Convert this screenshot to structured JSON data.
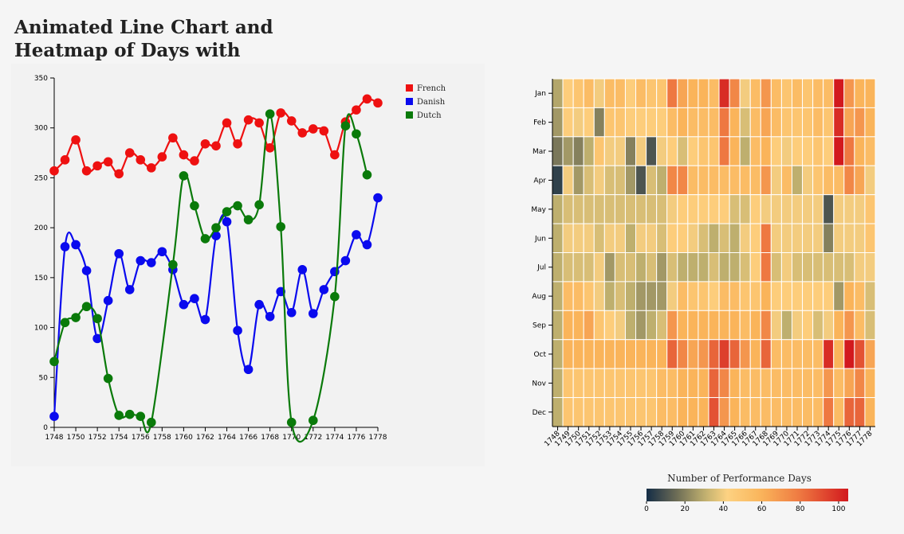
{
  "title": "Animated Line Chart and Heatmap of Days with Performances",
  "chart_data": [
    {
      "type": "line",
      "x": [
        1748,
        1749,
        1750,
        1751,
        1752,
        1753,
        1754,
        1755,
        1756,
        1757,
        1758,
        1759,
        1760,
        1761,
        1762,
        1763,
        1764,
        1765,
        1766,
        1767,
        1768,
        1769,
        1770,
        1771,
        1772,
        1773,
        1774,
        1775,
        1776,
        1777,
        1778
      ],
      "xticks": [
        "1748",
        "1750",
        "1752",
        "1754",
        "1756",
        "1758",
        "1760",
        "1762",
        "1764",
        "1766",
        "1768",
        "1770",
        "1772",
        "1774",
        "1776",
        "1778"
      ],
      "ylim": [
        0,
        350
      ],
      "yticks": [
        "0",
        "50",
        "100",
        "150",
        "200",
        "250",
        "300",
        "350"
      ],
      "legend_position": "top-right",
      "series": [
        {
          "name": "French",
          "color": "#ee1111",
          "values": [
            257,
            268,
            288,
            257,
            262,
            266,
            254,
            275,
            268,
            260,
            271,
            290,
            273,
            267,
            284,
            282,
            305,
            284,
            308,
            305,
            280,
            315,
            307,
            295,
            299,
            297,
            273,
            306,
            318,
            329,
            325
          ]
        },
        {
          "name": "Danish",
          "color": "#0a0aee",
          "values": [
            11,
            181,
            183,
            157,
            89,
            127,
            174,
            138,
            167,
            165,
            176,
            158,
            123,
            129,
            108,
            192,
            206,
            97,
            58,
            123,
            111,
            136,
            115,
            158,
            114,
            138,
            156,
            167,
            193,
            183,
            230
          ]
        },
        {
          "name": "Dutch",
          "color": "#0a7a0a",
          "values": [
            66,
            105,
            110,
            121,
            109,
            49,
            12,
            13,
            11,
            5,
            null,
            163,
            252,
            222,
            189,
            200,
            216,
            222,
            208,
            223,
            314,
            201,
            5,
            null,
            7,
            null,
            131,
            302,
            294,
            253,
            null
          ]
        }
      ]
    },
    {
      "type": "heatmap",
      "x_labels": [
        "1748",
        "1749",
        "1750",
        "1751",
        "1752",
        "1753",
        "1754",
        "1755",
        "1756",
        "1757",
        "1758",
        "1759",
        "1760",
        "1761",
        "1762",
        "1763",
        "1764",
        "1765",
        "1766",
        "1767",
        "1768",
        "1769",
        "1770",
        "1771",
        "1772",
        "1773",
        "1774",
        "1775",
        "1776",
        "1777",
        "1778"
      ],
      "y_labels": [
        "Jan",
        "Feb",
        "Mar",
        "Apr",
        "May",
        "Jun",
        "Jul",
        "Aug",
        "Sep",
        "Oct",
        "Nov",
        "Dec"
      ],
      "colorbar_title": "Number of Performance Days",
      "colorbar_ticks": [
        "0",
        "20",
        "40",
        "60",
        "80",
        "100"
      ],
      "colorbar_range": [
        0,
        105
      ],
      "values": [
        [
          28,
          45,
          50,
          55,
          40,
          55,
          55,
          45,
          55,
          50,
          50,
          80,
          65,
          60,
          60,
          55,
          100,
          75,
          40,
          55,
          70,
          55,
          50,
          55,
          50,
          55,
          55,
          110,
          70,
          60,
          60
        ],
        [
          25,
          45,
          40,
          45,
          20,
          50,
          50,
          45,
          45,
          45,
          45,
          55,
          60,
          55,
          55,
          55,
          80,
          60,
          35,
          55,
          65,
          55,
          50,
          50,
          50,
          55,
          50,
          100,
          65,
          70,
          60
        ],
        [
          18,
          25,
          20,
          30,
          50,
          40,
          40,
          20,
          40,
          10,
          40,
          45,
          35,
          45,
          50,
          50,
          80,
          60,
          30,
          55,
          60,
          45,
          40,
          45,
          45,
          50,
          45,
          105,
          80,
          60,
          55
        ],
        [
          5,
          40,
          25,
          35,
          40,
          35,
          35,
          25,
          10,
          35,
          30,
          75,
          75,
          55,
          55,
          55,
          55,
          55,
          55,
          55,
          70,
          40,
          55,
          30,
          40,
          50,
          55,
          55,
          75,
          65,
          40
        ],
        [
          30,
          35,
          35,
          35,
          35,
          35,
          35,
          35,
          35,
          35,
          35,
          40,
          45,
          45,
          45,
          45,
          45,
          35,
          35,
          45,
          40,
          40,
          40,
          40,
          40,
          40,
          10,
          40,
          40,
          40,
          50
        ],
        [
          30,
          40,
          40,
          40,
          35,
          40,
          40,
          30,
          40,
          40,
          35,
          45,
          45,
          40,
          35,
          30,
          35,
          30,
          40,
          45,
          80,
          40,
          40,
          40,
          40,
          40,
          20,
          40,
          40,
          40,
          50
        ],
        [
          30,
          35,
          35,
          35,
          40,
          25,
          35,
          35,
          30,
          35,
          25,
          35,
          30,
          30,
          30,
          35,
          30,
          30,
          35,
          45,
          80,
          35,
          40,
          35,
          35,
          35,
          35,
          35,
          35,
          40,
          40
        ],
        [
          30,
          55,
          55,
          50,
          40,
          30,
          35,
          30,
          25,
          25,
          25,
          40,
          55,
          50,
          50,
          45,
          55,
          55,
          50,
          50,
          60,
          45,
          45,
          45,
          45,
          45,
          45,
          25,
          60,
          55,
          35
        ],
        [
          30,
          60,
          60,
          65,
          50,
          45,
          40,
          30,
          25,
          30,
          35,
          70,
          60,
          60,
          60,
          60,
          60,
          60,
          55,
          60,
          75,
          40,
          30,
          40,
          45,
          35,
          40,
          60,
          70,
          55,
          35
        ],
        [
          30,
          60,
          60,
          60,
          60,
          60,
          60,
          60,
          60,
          60,
          60,
          85,
          75,
          65,
          70,
          85,
          95,
          85,
          70,
          60,
          85,
          55,
          55,
          55,
          55,
          55,
          100,
          60,
          105,
          90,
          65
        ],
        [
          30,
          50,
          50,
          50,
          50,
          50,
          50,
          50,
          50,
          50,
          55,
          55,
          60,
          60,
          60,
          85,
          75,
          60,
          55,
          55,
          55,
          55,
          55,
          55,
          55,
          55,
          70,
          55,
          65,
          75,
          60
        ],
        [
          30,
          50,
          50,
          50,
          50,
          50,
          50,
          50,
          50,
          50,
          55,
          55,
          60,
          60,
          60,
          90,
          70,
          60,
          55,
          55,
          55,
          55,
          55,
          55,
          55,
          55,
          80,
          55,
          85,
          85,
          60
        ]
      ]
    }
  ]
}
